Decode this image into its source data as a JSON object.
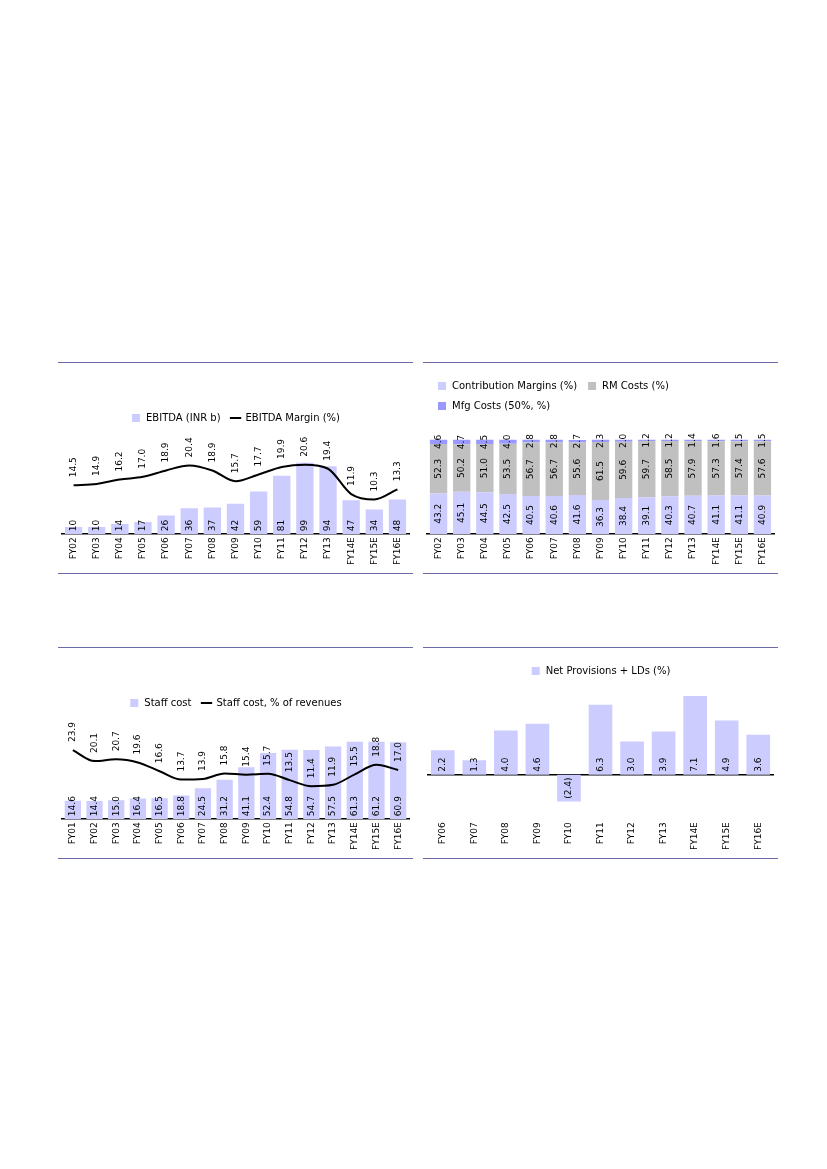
{
  "chart_data": [
    {
      "type": "bar",
      "legend": "top",
      "categories": [
        "FY02",
        "FY03",
        "FY04",
        "FY05",
        "FY06",
        "FY07",
        "FY08",
        "FY09",
        "FY10",
        "FY11",
        "FY12",
        "FY13",
        "FY14E",
        "FY15E",
        "FY16E"
      ],
      "series": [
        {
          "name": "EBITDA (INR b)",
          "color": "#ccccff",
          "values": [
            10,
            10,
            14,
            17,
            26,
            36,
            37,
            42,
            59,
            81,
            99,
            94,
            47,
            34,
            48
          ],
          "value_labels": [
            "10",
            "10",
            "14",
            "17",
            "26",
            "36",
            "37",
            "42",
            "59",
            "81",
            "99",
            "94",
            "47",
            "34",
            "48"
          ]
        },
        {
          "name": "EBITDA Margin (%)",
          "type": "line",
          "axis": "y2",
          "color": "#000000",
          "values": [
            14.5,
            14.9,
            16.2,
            17.0,
            18.9,
            20.4,
            18.9,
            15.7,
            17.7,
            19.9,
            20.6,
            19.4,
            11.9,
            10.3,
            13.3
          ],
          "value_labels": [
            "14.5",
            "14.9",
            "16.2",
            "17.0",
            "18.9",
            "20.4",
            "18.9",
            "15.7",
            "17.7",
            "19.9",
            "20.6",
            "19.4",
            "11.9",
            "10.3",
            "13.3"
          ]
        }
      ]
    },
    {
      "type": "bar",
      "legend": "top left",
      "stacked": true,
      "categories": [
        "FY02",
        "FY03",
        "FY04",
        "FY05",
        "FY06",
        "FY07",
        "FY08",
        "FY09",
        "FY10",
        "FY11",
        "FY12",
        "FY13",
        "FY14E",
        "FY15E",
        "FY16E"
      ],
      "series": [
        {
          "name": "Contribution Margins (%)",
          "color": "#ccccff",
          "values": [
            43.2,
            45.1,
            44.5,
            42.5,
            40.5,
            40.6,
            41.6,
            36.3,
            38.4,
            39.1,
            40.3,
            40.7,
            41.1,
            41.1,
            40.9
          ],
          "value_labels": [
            "43.2",
            "45.1",
            "44.5",
            "42.5",
            "40.5",
            "40.6",
            "41.6",
            "36.3",
            "38.4",
            "39.1",
            "40.3",
            "40.7",
            "41.1",
            "41.1",
            "40.9"
          ]
        },
        {
          "name": "RM Costs (%)",
          "color": "#c0c0c0",
          "values": [
            52.3,
            50.2,
            51.0,
            53.5,
            56.7,
            56.7,
            55.6,
            61.5,
            59.6,
            59.7,
            58.5,
            57.9,
            57.3,
            57.4,
            57.6
          ],
          "value_labels": [
            "52.3",
            "50.2",
            "51.0",
            "53.5",
            "56.7",
            "56.7",
            "55.6",
            "61.5",
            "59.6",
            "59.7",
            "58.5",
            "57.9",
            "57.3",
            "57.4",
            "57.6"
          ]
        },
        {
          "name": "Mfg Costs (50%, %)",
          "color": "#9999ff",
          "values": [
            4.6,
            4.7,
            4.5,
            4.0,
            2.8,
            2.8,
            2.7,
            2.3,
            2.0,
            1.2,
            1.2,
            1.4,
            1.6,
            1.5,
            1.5
          ],
          "value_labels": [
            "4.6",
            "4.7",
            "4.5",
            "4.0",
            "2.8",
            "2.8",
            "2.7",
            "2.3",
            "2.0",
            "1.2",
            "1.2",
            "1.4",
            "1.6",
            "1.5",
            "1.5"
          ]
        }
      ]
    },
    {
      "type": "bar",
      "legend": "top",
      "categories": [
        "FY01",
        "FY02",
        "FY03",
        "FY04",
        "FY05",
        "FY06",
        "FY07",
        "FY08",
        "FY09",
        "FY10",
        "FY11",
        "FY12",
        "FY13",
        "FY14E",
        "FY15E",
        "FY16E"
      ],
      "series": [
        {
          "name": "Staff cost",
          "color": "#ccccff",
          "values": [
            14.6,
            14.4,
            15.0,
            16.4,
            16.5,
            18.8,
            24.5,
            31.2,
            41.1,
            52.4,
            54.8,
            54.7,
            57.5,
            61.3,
            61.2,
            60.9
          ],
          "value_labels": [
            "14.6",
            "14.4",
            "15.0",
            "16.4",
            "16.5",
            "18.8",
            "24.5",
            "31.2",
            "41.1",
            "52.4",
            "54.8",
            "54.7",
            "57.5",
            "61.3",
            "61.2",
            "60.9"
          ]
        },
        {
          "name": "Staff cost, % of revenues",
          "type": "line",
          "axis": "y2",
          "color": "#000000",
          "values": [
            23.9,
            20.1,
            20.7,
            19.6,
            16.6,
            13.7,
            13.9,
            15.8,
            15.4,
            15.7,
            13.5,
            11.4,
            11.9,
            15.5,
            18.8,
            17.0
          ],
          "value_labels": [
            "23.9",
            "20.1",
            "20.7",
            "19.6",
            "16.6",
            "13.7",
            "13.9",
            "15.8",
            "15.4",
            "15.7",
            "13.5",
            "11.4",
            "11.9",
            "15.5",
            "18.8",
            "17.0"
          ]
        }
      ]
    },
    {
      "type": "bar",
      "legend": "top",
      "categories": [
        "FY06",
        "FY07",
        "FY08",
        "FY09",
        "FY10",
        "FY11",
        "FY12",
        "FY13",
        "FY14E",
        "FY15E",
        "FY16E"
      ],
      "series": [
        {
          "name": "Net Provisions + LDs (%)",
          "color": "#ccccff",
          "values": [
            2.2,
            1.3,
            4.0,
            4.6,
            -2.4,
            6.3,
            3.0,
            3.9,
            7.1,
            4.9,
            3.6
          ],
          "value_labels": [
            "2.2",
            "1.3",
            "4.0",
            "4.6",
            "(2.4)",
            "6.3",
            "3.0",
            "3.9",
            "7.1",
            "4.9",
            "3.6"
          ]
        }
      ]
    }
  ]
}
